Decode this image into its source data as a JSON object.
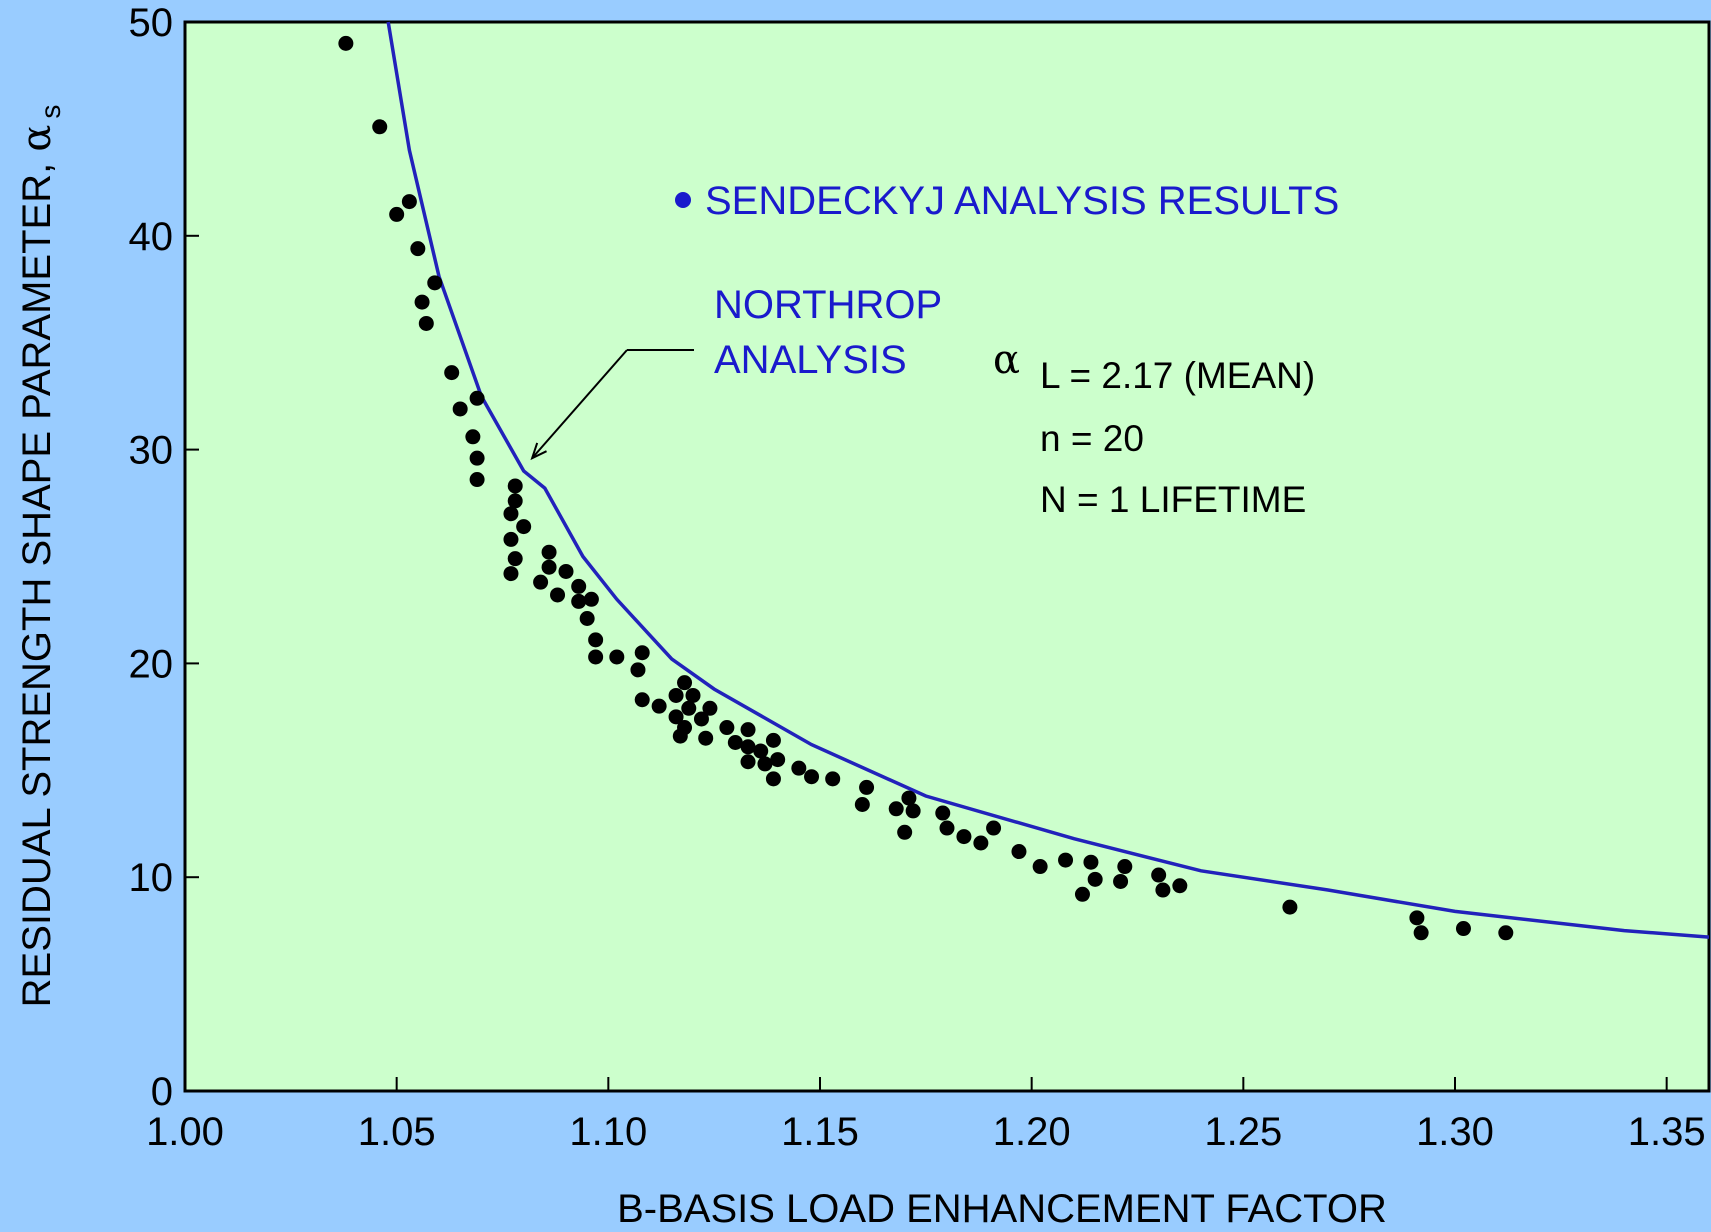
{
  "chart_data": {
    "type": "scatter",
    "title": "",
    "xlabel": "B-BASIS LOAD ENHANCEMENT FACTOR",
    "ylabel_text": "RESIDUAL STRENGTH SHAPE PARAMETER, ",
    "ylabel_symbol": "α",
    "ylabel_subscript": "s",
    "xlim": [
      1.0,
      1.36
    ],
    "ylim": [
      0,
      50
    ],
    "x_ticks": [
      1.0,
      1.05,
      1.1,
      1.15,
      1.2,
      1.25,
      1.3,
      1.35
    ],
    "x_tick_labels": [
      "1.00",
      "1.05",
      "1.10",
      "1.15",
      "1.20",
      "1.25",
      "1.30",
      "1.35"
    ],
    "y_ticks": [
      0,
      10,
      20,
      30,
      40,
      50
    ],
    "y_tick_labels": [
      "0",
      "10",
      "20",
      "30",
      "40",
      "50"
    ],
    "grid": false,
    "colors": {
      "page_background": "#99ccff",
      "plot_background": "#ccffcc",
      "curve": "#2222bb",
      "points": "#000000",
      "legend_text": "#1a1acc"
    },
    "series": [
      {
        "name": "SENDECKYJ  ANALYSIS RESULTS",
        "kind": "scatter",
        "points": [
          [
            1.038,
            49.0
          ],
          [
            1.046,
            45.1
          ],
          [
            1.05,
            41.0
          ],
          [
            1.053,
            41.6
          ],
          [
            1.055,
            39.4
          ],
          [
            1.056,
            36.9
          ],
          [
            1.057,
            35.9
          ],
          [
            1.059,
            37.8
          ],
          [
            1.063,
            33.6
          ],
          [
            1.065,
            31.9
          ],
          [
            1.069,
            32.4
          ],
          [
            1.068,
            30.6
          ],
          [
            1.069,
            29.6
          ],
          [
            1.069,
            28.6
          ],
          [
            1.078,
            28.3
          ],
          [
            1.078,
            27.6
          ],
          [
            1.077,
            27.0
          ],
          [
            1.08,
            26.4
          ],
          [
            1.077,
            25.8
          ],
          [
            1.078,
            24.9
          ],
          [
            1.077,
            24.2
          ],
          [
            1.086,
            25.2
          ],
          [
            1.086,
            24.5
          ],
          [
            1.09,
            24.3
          ],
          [
            1.084,
            23.8
          ],
          [
            1.088,
            23.2
          ],
          [
            1.093,
            23.6
          ],
          [
            1.093,
            22.9
          ],
          [
            1.096,
            23.0
          ],
          [
            1.095,
            22.1
          ],
          [
            1.097,
            21.1
          ],
          [
            1.097,
            20.3
          ],
          [
            1.102,
            20.3
          ],
          [
            1.108,
            20.5
          ],
          [
            1.107,
            19.7
          ],
          [
            1.108,
            18.3
          ],
          [
            1.112,
            18.0
          ],
          [
            1.116,
            18.5
          ],
          [
            1.118,
            19.1
          ],
          [
            1.12,
            18.5
          ],
          [
            1.119,
            17.9
          ],
          [
            1.116,
            17.5
          ],
          [
            1.118,
            17.0
          ],
          [
            1.117,
            16.6
          ],
          [
            1.122,
            17.4
          ],
          [
            1.124,
            17.9
          ],
          [
            1.128,
            17.0
          ],
          [
            1.123,
            16.5
          ],
          [
            1.13,
            16.3
          ],
          [
            1.133,
            16.1
          ],
          [
            1.133,
            16.9
          ],
          [
            1.136,
            15.9
          ],
          [
            1.133,
            15.4
          ],
          [
            1.137,
            15.3
          ],
          [
            1.139,
            16.4
          ],
          [
            1.14,
            15.5
          ],
          [
            1.139,
            14.6
          ],
          [
            1.145,
            15.1
          ],
          [
            1.148,
            14.7
          ],
          [
            1.153,
            14.6
          ],
          [
            1.161,
            14.2
          ],
          [
            1.16,
            13.4
          ],
          [
            1.168,
            13.2
          ],
          [
            1.171,
            13.7
          ],
          [
            1.172,
            13.1
          ],
          [
            1.17,
            12.1
          ],
          [
            1.179,
            13.0
          ],
          [
            1.18,
            12.3
          ],
          [
            1.184,
            11.9
          ],
          [
            1.188,
            11.6
          ],
          [
            1.191,
            12.3
          ],
          [
            1.197,
            11.2
          ],
          [
            1.202,
            10.5
          ],
          [
            1.208,
            10.8
          ],
          [
            1.212,
            9.2
          ],
          [
            1.214,
            10.7
          ],
          [
            1.215,
            9.9
          ],
          [
            1.221,
            9.8
          ],
          [
            1.222,
            10.5
          ],
          [
            1.23,
            10.1
          ],
          [
            1.231,
            9.4
          ],
          [
            1.235,
            9.6
          ],
          [
            1.261,
            8.6
          ],
          [
            1.291,
            8.1
          ],
          [
            1.292,
            7.4
          ],
          [
            1.302,
            7.6
          ],
          [
            1.312,
            7.4
          ]
        ]
      },
      {
        "name": "NORTHROP ANALYSIS",
        "name_lines": [
          "NORTHROP",
          "ANALYSIS"
        ],
        "kind": "line",
        "points": [
          [
            1.048,
            50.0
          ],
          [
            1.053,
            44.0
          ],
          [
            1.06,
            38.1
          ],
          [
            1.07,
            32.5
          ],
          [
            1.08,
            29.0
          ],
          [
            1.085,
            28.2
          ],
          [
            1.094,
            25.0
          ],
          [
            1.102,
            23.0
          ],
          [
            1.115,
            20.2
          ],
          [
            1.125,
            18.8
          ],
          [
            1.148,
            16.2
          ],
          [
            1.175,
            13.8
          ],
          [
            1.21,
            11.8
          ],
          [
            1.24,
            10.3
          ],
          [
            1.27,
            9.4
          ],
          [
            1.3,
            8.4
          ],
          [
            1.34,
            7.5
          ],
          [
            1.36,
            7.2
          ]
        ]
      }
    ],
    "annotations": {
      "param_alpha_symbol": "α",
      "param_lines": [
        "L = 2.17 (MEAN)",
        "n = 20",
        "N = 1 LIFETIME"
      ],
      "arrow_target": [
        1.082,
        29.6
      ]
    }
  }
}
